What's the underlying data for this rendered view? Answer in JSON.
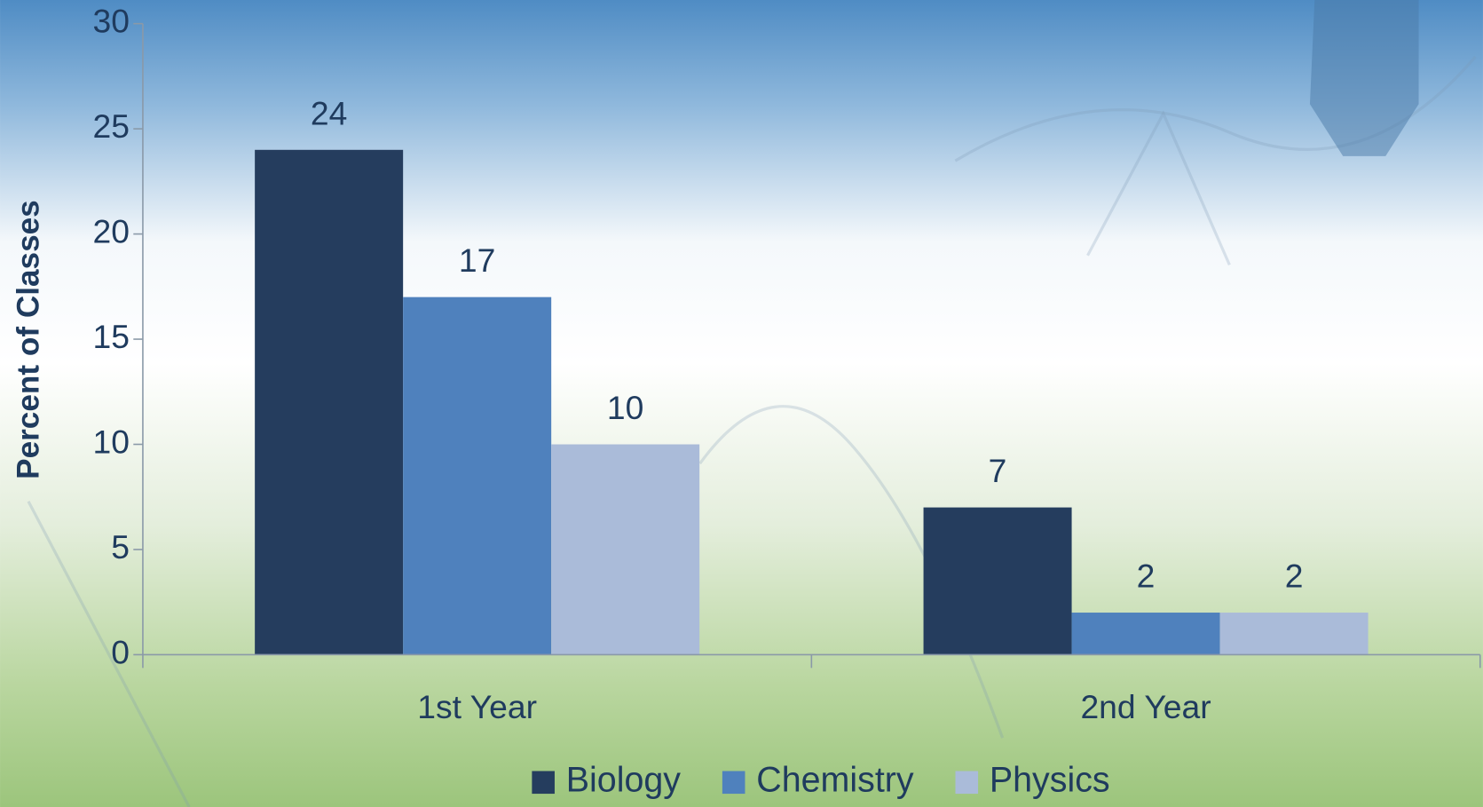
{
  "chart_data": {
    "type": "bar",
    "y_label": "Percent of Classes",
    "categories": [
      "1st Year",
      "2nd Year"
    ],
    "series": [
      {
        "name": "Biology",
        "color": "#253d5e",
        "values": [
          24,
          7
        ]
      },
      {
        "name": "Chemistry",
        "color": "#4f81bd",
        "values": [
          17,
          2
        ]
      },
      {
        "name": "Physics",
        "color": "#aabbd9",
        "values": [
          10,
          2
        ]
      }
    ],
    "ylim": [
      0,
      30
    ],
    "yticks": [
      0,
      5,
      10,
      15,
      20,
      25,
      30
    ],
    "grid": false,
    "legend": "bottom"
  }
}
